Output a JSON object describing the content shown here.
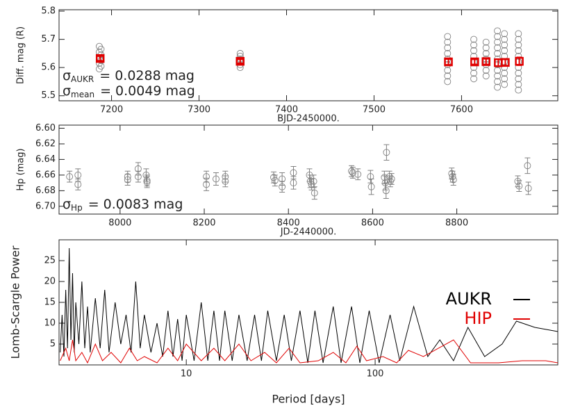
{
  "chart_data": [
    {
      "type": "scatter",
      "x_label": "BJD-2450000.",
      "y_label": "Diff. mag (R)",
      "xlim": [
        7140,
        7710
      ],
      "ylim": [
        5.482,
        5.805
      ],
      "xticks": [
        7200,
        7300,
        7400,
        7500,
        7600
      ],
      "yticks": [
        5.5,
        5.6,
        5.7,
        5.8
      ],
      "series": [
        {
          "color": "#808080",
          "marker": "circle",
          "x": [
            7186,
            7188,
            7186,
            7188,
            7186,
            7188,
            7186,
            7188,
            7186,
            7347,
            7347,
            7347,
            7347,
            7347,
            7347,
            7584,
            7584,
            7584,
            7584,
            7584,
            7584,
            7584,
            7584,
            7584,
            7614,
            7614,
            7614,
            7614,
            7614,
            7614,
            7614,
            7614,
            7628,
            7628,
            7628,
            7628,
            7628,
            7628,
            7628,
            7641,
            7641,
            7641,
            7641,
            7641,
            7641,
            7641,
            7641,
            7641,
            7641,
            7641,
            7649,
            7649,
            7649,
            7649,
            7649,
            7649,
            7649,
            7649,
            7649,
            7649,
            7665,
            7665,
            7665,
            7665,
            7665,
            7665,
            7665,
            7665,
            7665,
            7665,
            7665
          ],
          "values": [
            5.595,
            5.605,
            5.615,
            5.625,
            5.635,
            5.645,
            5.655,
            5.665,
            5.675,
            5.6,
            5.61,
            5.62,
            5.63,
            5.64,
            5.65,
            5.55,
            5.57,
            5.59,
            5.61,
            5.63,
            5.65,
            5.67,
            5.69,
            5.71,
            5.56,
            5.58,
            5.6,
            5.62,
            5.64,
            5.66,
            5.68,
            5.7,
            5.57,
            5.59,
            5.61,
            5.63,
            5.65,
            5.67,
            5.69,
            5.53,
            5.55,
            5.57,
            5.59,
            5.61,
            5.63,
            5.65,
            5.67,
            5.69,
            5.71,
            5.73,
            5.54,
            5.56,
            5.58,
            5.6,
            5.62,
            5.64,
            5.66,
            5.68,
            5.7,
            5.72,
            5.52,
            5.54,
            5.56,
            5.58,
            5.6,
            5.62,
            5.64,
            5.66,
            5.68,
            5.7,
            5.72
          ]
        },
        {
          "color": "#e00000",
          "marker": "square",
          "x": [
            7187,
            7347,
            7585,
            7615,
            7628,
            7642,
            7650,
            7666
          ],
          "values": [
            5.632,
            5.622,
            5.62,
            5.62,
            5.621,
            5.617,
            5.618,
            5.622
          ],
          "errors": [
            0.008,
            0.007,
            0.01,
            0.009,
            0.01,
            0.012,
            0.011,
            0.014
          ]
        }
      ],
      "annotations": [
        {
          "symbol": "σ",
          "subscript": "AUKR",
          "text": "= 0.0288 mag"
        },
        {
          "symbol": "σ",
          "subscript": "mean",
          "text": "= 0.0049 mag"
        }
      ]
    },
    {
      "type": "scatter",
      "x_label": "JD-2440000.",
      "y_label": "Hp (mag)",
      "xlim": [
        7855,
        9040
      ],
      "ylim": [
        6.71,
        6.596
      ],
      "xticks": [
        8000,
        8200,
        8400,
        8600,
        8800
      ],
      "yticks": [
        {
          "value": 6.6,
          "label": "6.60"
        },
        6.62,
        6.64,
        6.66,
        6.68,
        {
          "value": 6.7,
          "label": "6.70"
        }
      ],
      "series": [
        {
          "color": "#808080",
          "marker": "circle",
          "x": [
            7880,
            7900,
            7900,
            8018,
            8018,
            8043,
            8043,
            8062,
            8064,
            8064,
            8205,
            8205,
            8228,
            8250,
            8250,
            8365,
            8368,
            8385,
            8385,
            8412,
            8412,
            8450,
            8452,
            8455,
            8460,
            8462,
            8550,
            8553,
            8565,
            8595,
            8597,
            8628,
            8630,
            8632,
            8633,
            8640,
            8642,
            8645,
            8788,
            8790,
            8792,
            8945,
            8948,
            8968,
            8970
          ],
          "values": [
            6.662,
            6.66,
            6.672,
            6.662,
            6.666,
            6.652,
            6.662,
            6.66,
            6.667,
            6.669,
            6.662,
            6.672,
            6.665,
            6.662,
            6.668,
            6.663,
            6.667,
            6.665,
            6.675,
            6.657,
            6.67,
            6.66,
            6.668,
            6.672,
            6.668,
            6.683,
            6.655,
            6.657,
            6.659,
            6.662,
            6.675,
            6.663,
            6.67,
            6.68,
            6.631,
            6.662,
            6.668,
            6.665,
            6.658,
            6.662,
            6.666,
            6.668,
            6.674,
            6.648,
            6.677
          ],
          "errors": [
            0.007,
            0.008,
            0.007,
            0.007,
            0.007,
            0.008,
            0.007,
            0.008,
            0.007,
            0.007,
            0.007,
            0.008,
            0.008,
            0.007,
            0.007,
            0.007,
            0.007,
            0.008,
            0.007,
            0.008,
            0.008,
            0.008,
            0.008,
            0.007,
            0.008,
            0.008,
            0.007,
            0.007,
            0.007,
            0.008,
            0.01,
            0.008,
            0.009,
            0.01,
            0.01,
            0.007,
            0.007,
            0.007,
            0.007,
            0.007,
            0.007,
            0.007,
            0.007,
            0.01,
            0.008
          ]
        }
      ],
      "annotations": [
        {
          "symbol": "σ",
          "subscript": "Hp",
          "text": "= 0.0083 mag"
        }
      ]
    },
    {
      "type": "line",
      "x_label": "Period [days]",
      "y_label": "Lomb-Scargle Power",
      "xscale": "log",
      "xlim": [
        2.12,
        927
      ],
      "ylim": [
        0,
        30
      ],
      "xticks": [
        10,
        100
      ],
      "yticks": [
        5,
        10,
        15,
        20,
        25
      ],
      "legend": "right",
      "series": [
        {
          "name": "AUKR",
          "color": "#000000",
          "x": [
            2.15,
            2.2,
            2.25,
            2.3,
            2.35,
            2.4,
            2.45,
            2.5,
            2.55,
            2.6,
            2.7,
            2.8,
            2.9,
            3.0,
            3.1,
            3.3,
            3.5,
            3.7,
            3.9,
            4.2,
            4.5,
            4.8,
            5.1,
            5.4,
            5.7,
            6.0,
            6.5,
            7.0,
            7.5,
            8.0,
            8.5,
            9.0,
            9.5,
            10,
            11,
            12,
            13,
            14,
            15,
            16,
            17.5,
            19,
            21,
            23,
            25,
            27,
            30,
            33,
            36,
            40,
            44,
            48,
            53,
            60,
            66,
            75,
            83,
            93,
            105,
            120,
            135,
            160,
            190,
            220,
            260,
            310,
            380,
            470,
            560,
            700,
            927
          ],
          "values": [
            3,
            12,
            2,
            18,
            4,
            28,
            6,
            22,
            3,
            15,
            5,
            20,
            4,
            14,
            3,
            16,
            4,
            18,
            3,
            15,
            5,
            12,
            3,
            20,
            4,
            12,
            3,
            10,
            2,
            13,
            2,
            11,
            1,
            12,
            1,
            15,
            1,
            13,
            1,
            13,
            1,
            12,
            1,
            12,
            1,
            13,
            1,
            12,
            1,
            13,
            0.5,
            13,
            0.5,
            14,
            0.5,
            14,
            0.5,
            13,
            0.5,
            12,
            1,
            14,
            2,
            6,
            1,
            9,
            2,
            5,
            10.5,
            9,
            8
          ]
        },
        {
          "name": "HIP",
          "color": "#e00000",
          "x": [
            2.15,
            2.3,
            2.4,
            2.5,
            2.6,
            2.8,
            3.0,
            3.3,
            3.6,
            4,
            4.5,
            5,
            5.5,
            6,
            7,
            8,
            9,
            10,
            12,
            14,
            16,
            19,
            22,
            26,
            30,
            35,
            40,
            50,
            60,
            70,
            80,
            90,
            110,
            130,
            150,
            180,
            260,
            320,
            450,
            600,
            800,
            927
          ],
          "values": [
            1,
            4,
            1,
            6,
            1,
            3,
            0.5,
            5,
            1,
            3,
            0.5,
            4,
            1,
            2,
            0.5,
            4,
            1,
            5,
            1,
            4,
            1,
            5,
            1,
            3,
            0.5,
            4,
            0.5,
            1,
            3,
            0.5,
            4.5,
            1,
            2,
            0.5,
            3.5,
            2,
            6,
            0.5,
            0.5,
            1,
            1,
            0.5
          ]
        }
      ]
    }
  ]
}
